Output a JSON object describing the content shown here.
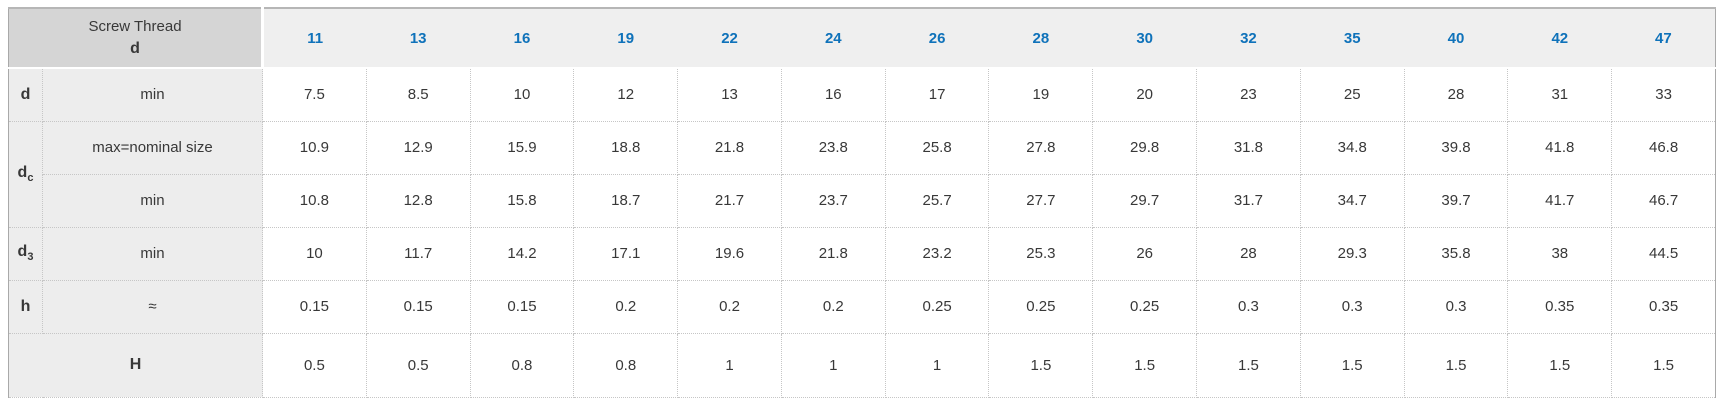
{
  "table": {
    "corner": {
      "line1": "Screw Thread",
      "line2": "d"
    },
    "columns": [
      "11",
      "13",
      "16",
      "19",
      "22",
      "24",
      "26",
      "28",
      "30",
      "32",
      "35",
      "40",
      "42",
      "47"
    ],
    "body": [
      {
        "param": {
          "base": "d",
          "sub": ""
        },
        "specs": [
          {
            "label": "min",
            "values": [
              "7.5",
              "8.5",
              "10",
              "12",
              "13",
              "16",
              "17",
              "19",
              "20",
              "23",
              "25",
              "28",
              "31",
              "33"
            ]
          }
        ]
      },
      {
        "param": {
          "base": "d",
          "sub": "c"
        },
        "specs": [
          {
            "label": "max=nominal size",
            "values": [
              "10.9",
              "12.9",
              "15.9",
              "18.8",
              "21.8",
              "23.8",
              "25.8",
              "27.8",
              "29.8",
              "31.8",
              "34.8",
              "39.8",
              "41.8",
              "46.8"
            ]
          },
          {
            "label": "min",
            "values": [
              "10.8",
              "12.8",
              "15.8",
              "18.7",
              "21.7",
              "23.7",
              "25.7",
              "27.7",
              "29.7",
              "31.7",
              "34.7",
              "39.7",
              "41.7",
              "46.7"
            ]
          }
        ]
      },
      {
        "param": {
          "base": "d",
          "sub": "3"
        },
        "specs": [
          {
            "label": "min",
            "values": [
              "10",
              "11.7",
              "14.2",
              "17.1",
              "19.6",
              "21.8",
              "23.2",
              "25.3",
              "26",
              "28",
              "29.3",
              "35.8",
              "38",
              "44.5"
            ]
          }
        ]
      },
      {
        "param": {
          "base": "h",
          "sub": ""
        },
        "specs": [
          {
            "label": "≈",
            "values": [
              "0.15",
              "0.15",
              "0.15",
              "0.2",
              "0.2",
              "0.2",
              "0.25",
              "0.25",
              "0.25",
              "0.3",
              "0.3",
              "0.3",
              "0.35",
              "0.35"
            ]
          }
        ]
      },
      {
        "param": {
          "base": "H",
          "sub": ""
        },
        "span_full": true,
        "specs": [
          {
            "label": "",
            "values": [
              "0.5",
              "0.5",
              "0.8",
              "0.8",
              "1",
              "1",
              "1",
              "1.5",
              "1.5",
              "1.5",
              "1.5",
              "1.5",
              "1.5",
              "1.5"
            ]
          }
        ]
      }
    ]
  },
  "colors": {
    "header_blue": "#0f72ba",
    "corner_bg": "#d5d5d5",
    "header_bg": "#efefef",
    "label_bg": "#ededed",
    "text": "#383838",
    "dotted_border": "#c6c6c6"
  }
}
